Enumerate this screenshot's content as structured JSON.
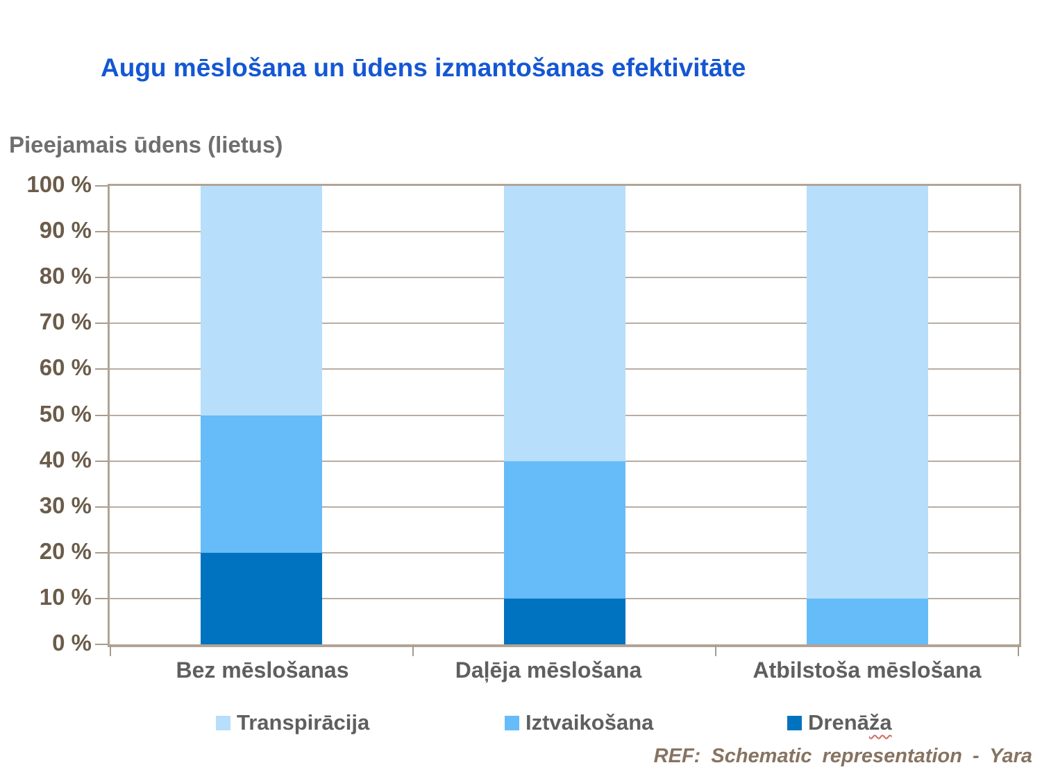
{
  "title": "Augu mēslošana un ūdens izmantošanas efektivitāte",
  "footer": {
    "text": "REF: Schematic representation - Yara"
  },
  "colors": {
    "title_blue": "#1457d3",
    "axis_text": "#6b5c4a",
    "label_gray": "#5f5f5f",
    "grid_tan": "#b9ada1",
    "border_tan": "#b1a496",
    "transpiracija_light_blue": "#b7defb",
    "iztvaikosana_mid_blue": "#66bbf9",
    "drenaza_dark_blue": "#0073c0"
  },
  "chart_data": {
    "type": "bar",
    "stacked": true,
    "title": "Augu mēslošana un ūdens izmantošanas efektivitāte",
    "y_axis_title": "Pieejamais ūdens (lietus)",
    "categories": [
      "Bez mēslošanas",
      "Daļēja mēslošana",
      "Atbilstoša mēslošana"
    ],
    "series": [
      {
        "name": "Transpirācija",
        "color": "#b7defb",
        "values": [
          50,
          60,
          90
        ]
      },
      {
        "name": "Iztvaikošana",
        "color": "#66bbf9",
        "values": [
          30,
          30,
          10
        ]
      },
      {
        "name": "Drenāža",
        "color": "#0073c0",
        "values": [
          20,
          10,
          0
        ]
      }
    ],
    "stack_order_bottom_to_top": [
      "Drenāža",
      "Iztvaikošana",
      "Transpirācija"
    ],
    "ylim": [
      0,
      100
    ],
    "ytick_step": 10,
    "ytick_labels": [
      "0 %",
      "10 %",
      "20 %",
      "30 %",
      "40 %",
      "50 %",
      "60 %",
      "70 %",
      "80 %",
      "90 %",
      "100 %"
    ],
    "grid": true,
    "legend_position": "bottom",
    "legend": [
      {
        "label": "Transpirācija",
        "color": "#b7defb"
      },
      {
        "label": "Iztvaikošana",
        "color": "#66bbf9"
      },
      {
        "label": "Drenāža",
        "color": "#0073c0",
        "spell_underline": "ža"
      }
    ],
    "annotation": "REF: Schematic representation - Yara"
  }
}
